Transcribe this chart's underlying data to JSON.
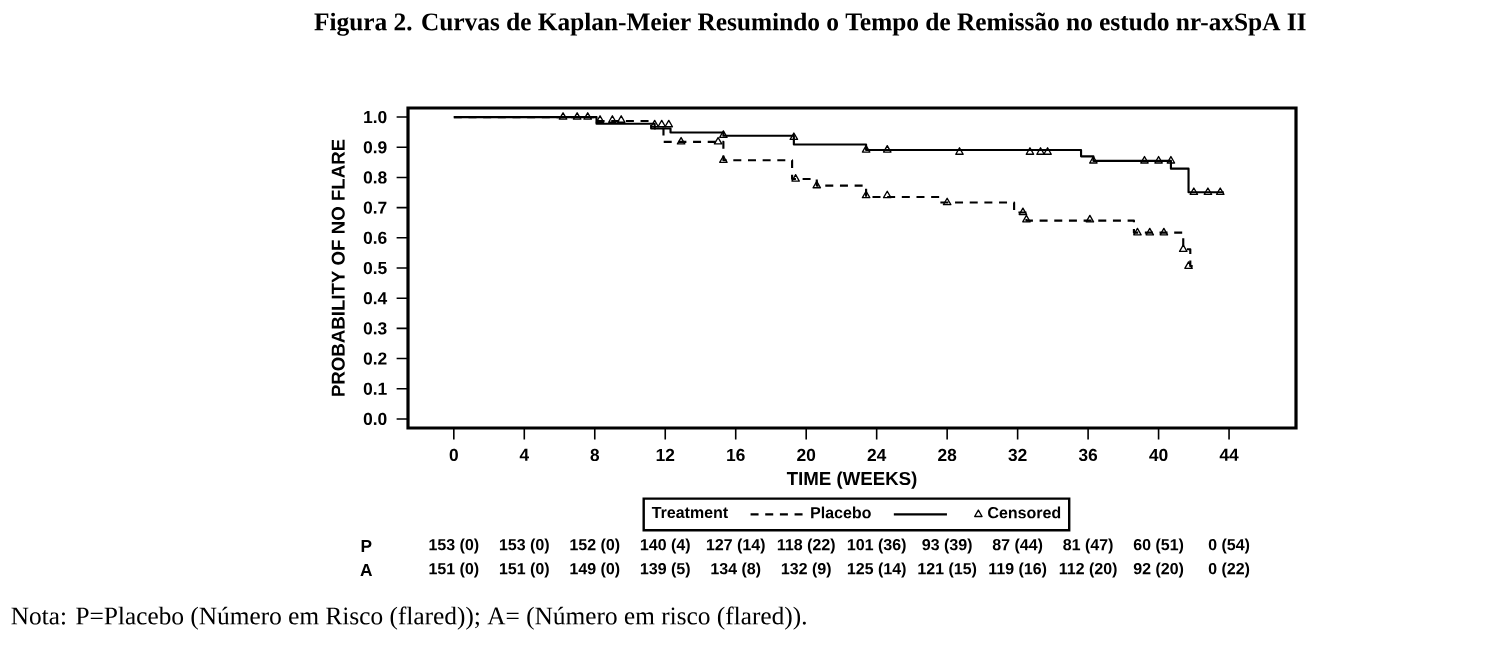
{
  "chart_data": {
    "type": "step",
    "title": "Figura 2. Curvas de Kaplan-Meier Resumindo o Tempo de Remissão no estudo nr-axSpA II",
    "xlabel": "TIME (WEEKS)",
    "ylabel": "PROBABILITY OF NO FLARE",
    "legend_title": "Treatment",
    "legend": "bottom",
    "xlim": [
      -2.6,
      47.8
    ],
    "ylim": [
      -0.03,
      1.03
    ],
    "xticks": [
      0,
      4,
      8,
      12,
      16,
      20,
      24,
      28,
      32,
      36,
      40,
      44
    ],
    "yticks": [
      {
        "value": 0,
        "label": "0.0"
      },
      0.1,
      0.2,
      0.3,
      0.4,
      0.5,
      0.6,
      0.7,
      0.8,
      0.9,
      {
        "value": 1,
        "label": "1.0"
      }
    ],
    "series": [
      {
        "name": "Placebo",
        "color": "#000000",
        "line_style": "dashed",
        "x": [
          0,
          8,
          11.2,
          11.9,
          15.3,
          19.2,
          20.6,
          23.4,
          27.6,
          31.8,
          32.5,
          38.6,
          41.4,
          41.8,
          42.0
        ],
        "values": [
          1,
          0.987,
          0.962,
          0.918,
          0.857,
          0.795,
          0.773,
          0.735,
          0.717,
          0.684,
          0.657,
          0.617,
          0.562,
          0.506,
          0.506
        ]
      },
      {
        "color": "#000000",
        "line_style": "solid",
        "x": [
          0,
          8.1,
          11.4,
          12.3,
          15.3,
          19.3,
          23.4,
          35.6,
          36.3,
          40.7,
          41.7,
          43.7
        ],
        "values": [
          1,
          0.978,
          0.962,
          0.949,
          0.938,
          0.909,
          0.891,
          0.87,
          0.855,
          0.829,
          0.751,
          0.751
        ]
      },
      {
        "name": "Censored",
        "type": "scatter",
        "marker": "triangle",
        "color": "#000000",
        "x": [
          6.2,
          7,
          7.6,
          8.3,
          9,
          9.5,
          11.4,
          11.8,
          12.2,
          12.9,
          15,
          15.3,
          15.3,
          19.3,
          19.4,
          20.6,
          23.4,
          23.4,
          24.6,
          24.6,
          28,
          28.7,
          32.3,
          32.5,
          32.7,
          33.3,
          33.7,
          36.1,
          36.3,
          38.8,
          39.5,
          40.3,
          39.2,
          40,
          40.7,
          41.4,
          41.7,
          42,
          42.8,
          43.5
        ],
        "values": [
          1,
          1,
          1,
          0.99,
          0.99,
          0.99,
          0.975,
          0.975,
          0.975,
          0.918,
          0.918,
          0.94,
          0.857,
          0.933,
          0.795,
          0.773,
          0.891,
          0.74,
          0.891,
          0.74,
          0.717,
          0.884,
          0.684,
          0.66,
          0.884,
          0.884,
          0.884,
          0.66,
          0.855,
          0.617,
          0.617,
          0.617,
          0.855,
          0.855,
          0.855,
          0.562,
          0.506,
          0.751,
          0.751,
          0.751
        ]
      }
    ],
    "annotations": [
      "Nota: P=Placebo (Número em Risco (flared)); A= (Número em risco (flared)).",
      "P",
      "A",
      "153 (0)",
      "153 (0)",
      "152 (0)",
      "140 (4)",
      "127 (14)",
      "118 (22)",
      "101 (36)",
      "93 (39)",
      "87 (44)",
      "81 (47)",
      "60 (51)",
      "0 (54)",
      "151 (0)",
      "151 (0)",
      "149 (0)",
      "139 (5)",
      "134 (8)",
      "132 (9)",
      "125 (14)",
      "121 (15)",
      "119 (16)",
      "112 (20)",
      "92 (20)",
      "0 (22)"
    ]
  }
}
